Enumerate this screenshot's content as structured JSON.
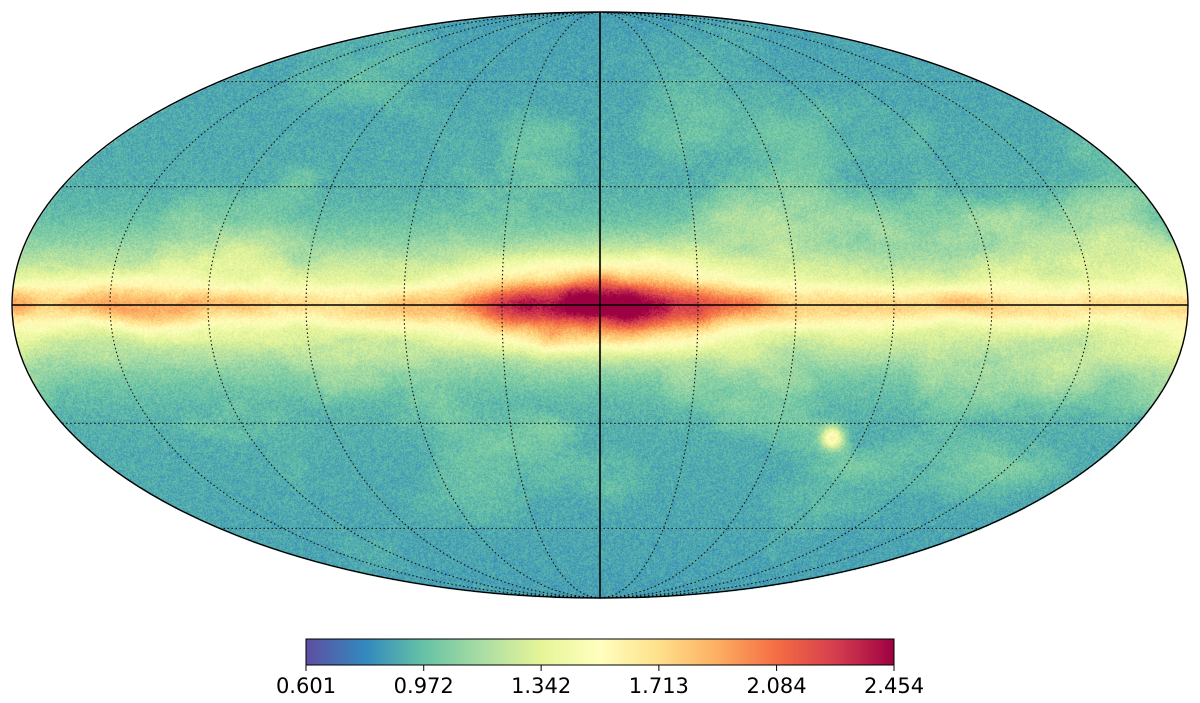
{
  "map": {
    "projection": "mollweide",
    "graticule": "dotted",
    "central_axes": "solid"
  },
  "colorbar": {
    "colormap": "Spectral_r",
    "min": 0.601,
    "max": 2.454,
    "ticks": [
      "0.601",
      "0.972",
      "1.342",
      "1.713",
      "2.084",
      "2.454"
    ]
  },
  "colors": {
    "stops": [
      "#5e4fa2",
      "#3288bd",
      "#66c2a5",
      "#abdda4",
      "#e6f598",
      "#ffffbf",
      "#fee08b",
      "#fdae61",
      "#f46d43",
      "#d53e4f",
      "#9e0142"
    ]
  }
}
